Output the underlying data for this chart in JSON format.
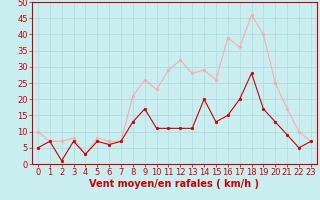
{
  "hours": [
    0,
    1,
    2,
    3,
    4,
    5,
    6,
    7,
    8,
    9,
    10,
    11,
    12,
    13,
    14,
    15,
    16,
    17,
    18,
    19,
    20,
    21,
    22,
    23
  ],
  "wind_avg": [
    5,
    7,
    1,
    7,
    3,
    7,
    6,
    7,
    13,
    17,
    11,
    11,
    11,
    11,
    20,
    13,
    15,
    20,
    28,
    17,
    13,
    9,
    5,
    7
  ],
  "wind_gust": [
    10,
    7,
    7,
    8,
    3,
    8,
    7,
    7,
    21,
    26,
    23,
    29,
    32,
    28,
    29,
    26,
    39,
    36,
    46,
    40,
    25,
    17,
    10,
    7
  ],
  "xlabel": "Vent moyen/en rafales ( km/h )",
  "ylim": [
    0,
    50
  ],
  "yticks": [
    0,
    5,
    10,
    15,
    20,
    25,
    30,
    35,
    40,
    45,
    50
  ],
  "bg_color": "#c8eef0",
  "grid_color": "#b0d8dc",
  "line_avg_color": "#cc0000",
  "line_gust_color": "#ffaaaa",
  "xlabel_color": "#cc0000",
  "xlabel_fontsize": 7,
  "tick_fontsize": 6,
  "axis_color": "#cc0000",
  "line_width": 0.8,
  "marker_size": 2.0
}
